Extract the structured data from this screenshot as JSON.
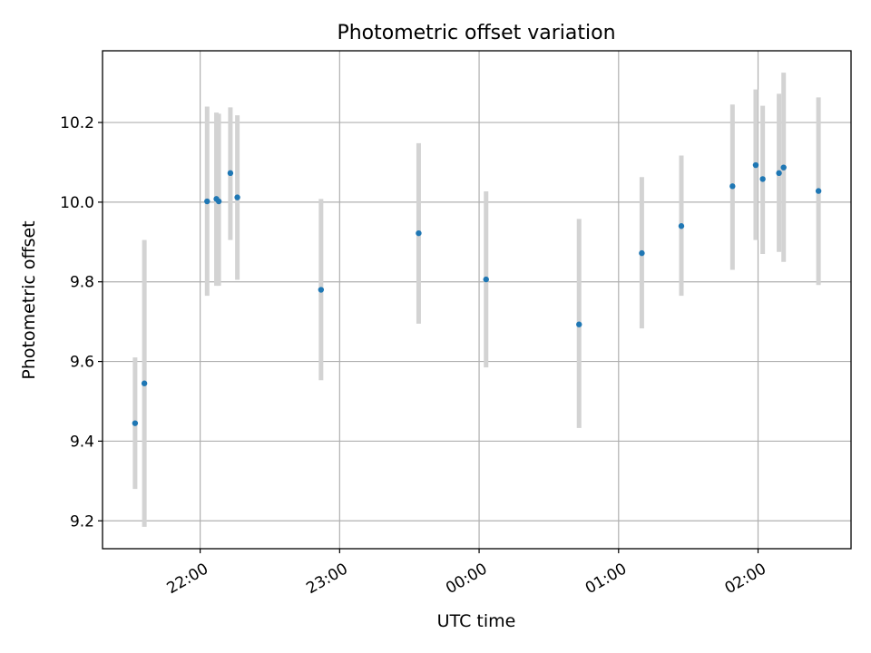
{
  "chart_data": {
    "type": "scatter",
    "title": "Photometric offset variation",
    "xlabel": "UTC time",
    "ylabel": "Photometric offset",
    "x_axis_type": "time",
    "xlim": [
      "21:18",
      "02:40"
    ],
    "ylim": [
      9.13,
      10.38
    ],
    "x_ticks": [
      "22:00",
      "23:00",
      "00:00",
      "01:00",
      "02:00"
    ],
    "y_ticks": [
      9.2,
      9.4,
      9.6,
      9.8,
      10.0,
      10.2
    ],
    "y_tick_labels": [
      "9.2",
      "9.4",
      "9.6",
      "9.8",
      "10.0",
      "10.2"
    ],
    "x_tick_rotation_deg": 30,
    "grid": true,
    "legend": "none",
    "point_color": "#1f77b4",
    "errorbar_color": "#d3d3d3",
    "series": [
      {
        "points": [
          {
            "x": "21:32",
            "y": 9.445,
            "ylow": 9.28,
            "yhigh": 9.61
          },
          {
            "x": "21:36",
            "y": 9.545,
            "ylow": 9.185,
            "yhigh": 9.905
          },
          {
            "x": "22:03",
            "y": 10.002,
            "ylow": 9.765,
            "yhigh": 10.24
          },
          {
            "x": "22:07",
            "y": 10.008,
            "ylow": 9.79,
            "yhigh": 10.225
          },
          {
            "x": "22:08",
            "y": 10.002,
            "ylow": 9.79,
            "yhigh": 10.222
          },
          {
            "x": "22:13",
            "y": 10.073,
            "ylow": 9.905,
            "yhigh": 10.238
          },
          {
            "x": "22:16",
            "y": 10.012,
            "ylow": 9.805,
            "yhigh": 10.218
          },
          {
            "x": "22:52",
            "y": 9.78,
            "ylow": 9.553,
            "yhigh": 10.008
          },
          {
            "x": "23:34",
            "y": 9.922,
            "ylow": 9.695,
            "yhigh": 10.148
          },
          {
            "x": "00:03",
            "y": 9.806,
            "ylow": 9.585,
            "yhigh": 10.027
          },
          {
            "x": "00:43",
            "y": 9.693,
            "ylow": 9.433,
            "yhigh": 9.958
          },
          {
            "x": "01:10",
            "y": 9.872,
            "ylow": 9.683,
            "yhigh": 10.063
          },
          {
            "x": "01:27",
            "y": 9.94,
            "ylow": 9.765,
            "yhigh": 10.117
          },
          {
            "x": "01:49",
            "y": 10.04,
            "ylow": 9.83,
            "yhigh": 10.245
          },
          {
            "x": "01:59",
            "y": 10.093,
            "ylow": 9.905,
            "yhigh": 10.283
          },
          {
            "x": "02:02",
            "y": 10.058,
            "ylow": 9.87,
            "yhigh": 10.242
          },
          {
            "x": "02:09",
            "y": 10.073,
            "ylow": 9.875,
            "yhigh": 10.272
          },
          {
            "x": "02:11",
            "y": 10.087,
            "ylow": 9.85,
            "yhigh": 10.325
          },
          {
            "x": "02:26",
            "y": 10.028,
            "ylow": 9.792,
            "yhigh": 10.263
          }
        ]
      }
    ]
  }
}
